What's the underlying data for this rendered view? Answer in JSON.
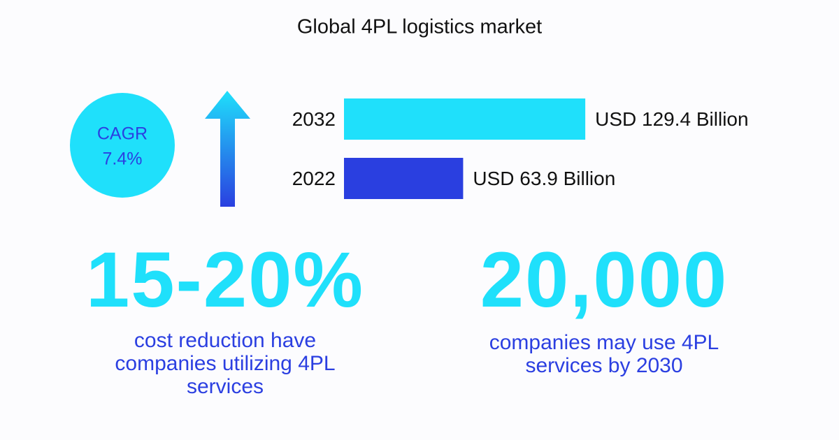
{
  "chart_data": {
    "type": "bar",
    "orientation": "horizontal",
    "title": "Global 4PL logistics market",
    "categories": [
      "2032",
      "2022"
    ],
    "values": [
      129.4,
      63.9
    ],
    "value_labels": [
      "USD 129.4 Billion",
      "USD 63.9 Billion"
    ],
    "colors": [
      "#1fe0fb",
      "#2a3fe0"
    ]
  },
  "cagr": {
    "label": "CAGR",
    "value": "7.4%"
  },
  "stats": [
    {
      "figure": "15-20%",
      "caption": "cost reduction have companies utilizing 4PL services"
    },
    {
      "figure": "20,000",
      "caption": "companies may use 4PL services by 2030"
    }
  ]
}
